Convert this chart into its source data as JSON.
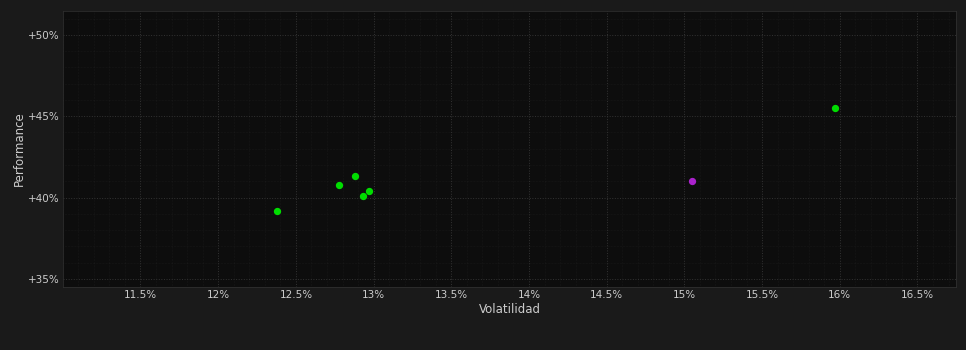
{
  "background_color": "#1a1a1a",
  "plot_bg_color": "#0d0d0d",
  "grid_color": "#333333",
  "xlabel": "Volatilidad",
  "ylabel": "Performance",
  "xlim": [
    11.0,
    16.75
  ],
  "ylim": [
    34.5,
    51.5
  ],
  "xticks": [
    11.5,
    12.0,
    12.5,
    13.0,
    13.5,
    14.0,
    14.5,
    15.0,
    15.5,
    16.0,
    16.5
  ],
  "yticks": [
    35.0,
    40.0,
    45.0,
    50.0
  ],
  "ytick_labels": [
    "+35%",
    "+40%",
    "+45%",
    "+50%"
  ],
  "xtick_labels": [
    "11.5%",
    "12%",
    "12.5%",
    "13%",
    "13.5%",
    "14%",
    "14.5%",
    "15%",
    "15.5%",
    "16%",
    "16.5%"
  ],
  "green_points": [
    [
      15.97,
      45.5
    ],
    [
      12.88,
      41.3
    ],
    [
      12.97,
      40.4
    ],
    [
      12.93,
      40.1
    ],
    [
      12.78,
      40.75
    ],
    [
      12.38,
      39.2
    ]
  ],
  "purple_points": [
    [
      15.05,
      41.0
    ]
  ],
  "green_color": "#00dd00",
  "purple_color": "#aa22cc",
  "marker_size": 18,
  "tick_color": "#cccccc",
  "label_color": "#cccccc",
  "tick_fontsize": 7.5,
  "label_fontsize": 8.5
}
